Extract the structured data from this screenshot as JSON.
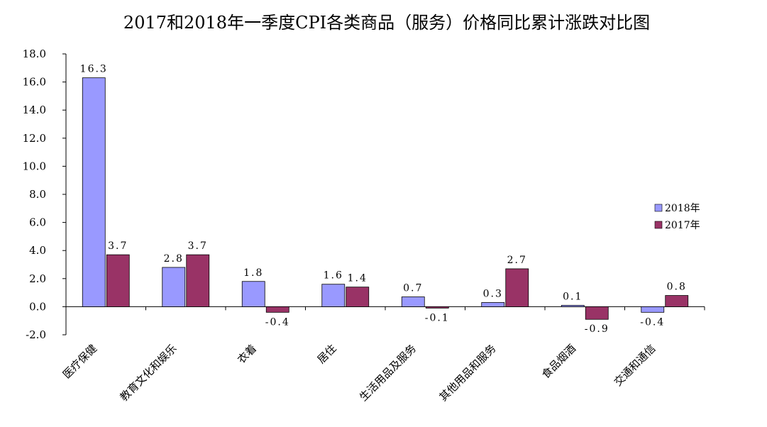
{
  "chart_data": {
    "type": "bar",
    "title": "2017和2018年一季度CPI各类商品（服务）价格同比累计涨跌对比图",
    "categories": [
      "医疗保健",
      "教育文化和娱乐",
      "衣着",
      "居住",
      "生活用品及服务",
      "其他用品和服务",
      "食品烟酒",
      "交通和通信"
    ],
    "series": [
      {
        "name": "2018年",
        "values": [
          16.3,
          2.8,
          1.8,
          1.6,
          0.7,
          0.3,
          0.1,
          -0.4
        ],
        "color": "#9999ff"
      },
      {
        "name": "2017年",
        "values": [
          3.7,
          3.7,
          -0.4,
          1.4,
          -0.1,
          2.7,
          -0.9,
          0.8
        ],
        "color": "#993366"
      }
    ],
    "ylim": [
      -2.0,
      18.0
    ],
    "yticks": [
      "-2.0",
      "0.0",
      "2.0",
      "4.0",
      "6.0",
      "8.0",
      "10.0",
      "12.0",
      "14.0",
      "16.0",
      "18.0"
    ],
    "grid": false,
    "legend_position": "right"
  }
}
